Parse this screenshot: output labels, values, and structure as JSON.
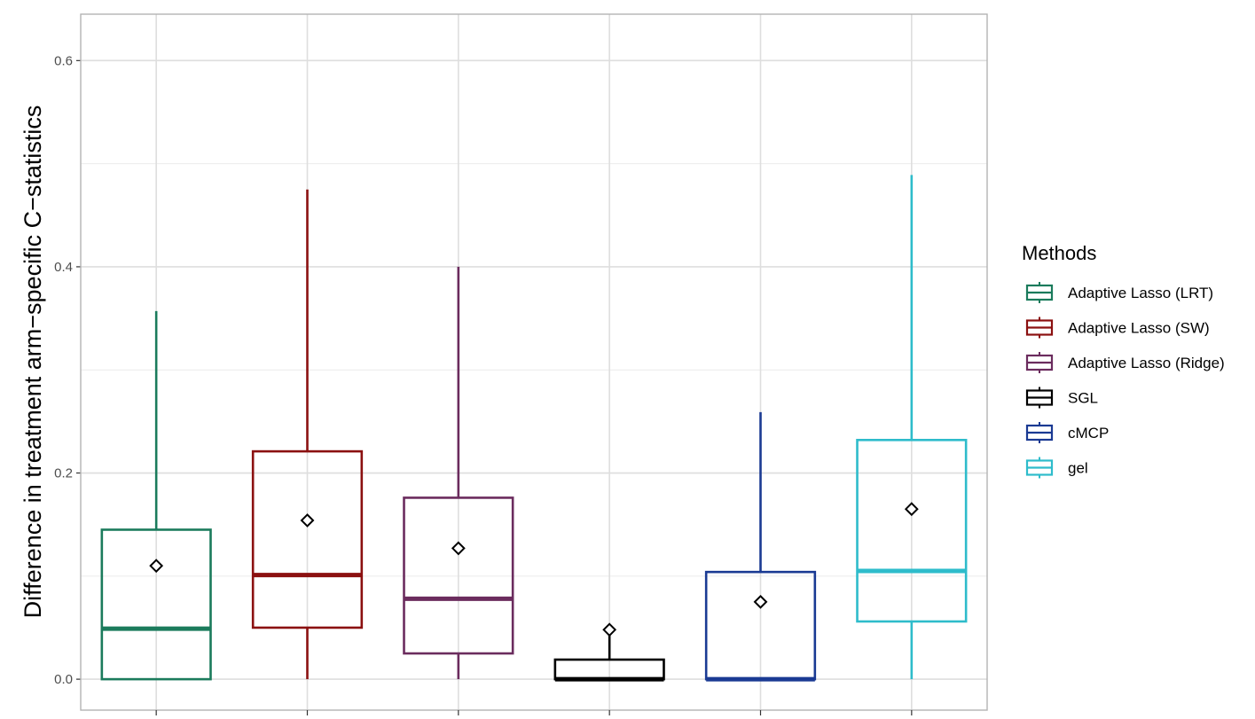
{
  "chart_data": {
    "type": "boxplot",
    "ylabel": "Difference in treatment arm−specific C−statistics",
    "ylim": [
      -0.03,
      0.645
    ],
    "yticks": [
      0.0,
      0.2,
      0.4,
      0.6
    ],
    "ytick_labels": [
      "0.0",
      "0.2",
      "0.4",
      "0.6"
    ],
    "grid": true,
    "legend": {
      "title": "Methods",
      "placement": "right"
    },
    "series": [
      {
        "name": "Adaptive Lasso (LRT)",
        "color": "#1b7b5c",
        "whisker_low": 0.0,
        "q1": 0.0,
        "median": 0.049,
        "q3": 0.145,
        "whisker_high": 0.357,
        "mean": 0.11
      },
      {
        "name": "Adaptive Lasso (SW)",
        "color": "#8b1010",
        "whisker_low": 0.0,
        "q1": 0.05,
        "median": 0.101,
        "q3": 0.221,
        "whisker_high": 0.475,
        "mean": 0.154
      },
      {
        "name": "Adaptive Lasso (Ridge)",
        "color": "#6b2c5e",
        "whisker_low": 0.0,
        "q1": 0.025,
        "median": 0.078,
        "q3": 0.176,
        "whisker_high": 0.4,
        "mean": 0.127
      },
      {
        "name": "SGL",
        "color": "#000000",
        "whisker_low": 0.0,
        "q1": 0.0,
        "median": 0.0,
        "q3": 0.019,
        "whisker_high": 0.048,
        "mean": 0.048
      },
      {
        "name": "cMCP",
        "color": "#1a3a93",
        "whisker_low": 0.0,
        "q1": 0.0,
        "median": 0.0,
        "q3": 0.104,
        "whisker_high": 0.259,
        "mean": 0.075
      },
      {
        "name": "gel",
        "color": "#2ebccb",
        "whisker_low": 0.0,
        "q1": 0.056,
        "median": 0.105,
        "q3": 0.232,
        "whisker_high": 0.489,
        "mean": 0.165
      }
    ]
  }
}
